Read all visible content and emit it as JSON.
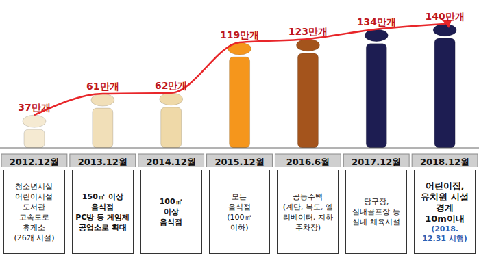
{
  "chart_data": {
    "type": "bar",
    "categories": [
      "2012.12월",
      "2013.12월",
      "2014.12월",
      "2015.12월",
      "2016.6월",
      "2017.12월",
      "2018.12월"
    ],
    "values": [
      37,
      61,
      62,
      119,
      123,
      134,
      140
    ],
    "value_labels": [
      "37만개",
      "61만개",
      "62만개",
      "119만개",
      "123만개",
      "134만개",
      "140만개"
    ],
    "data_labels": true,
    "colors": [
      "#f5ead2",
      "#f1dfb8",
      "#efd9a8",
      "#f5961c",
      "#a4541c",
      "#1d1d52",
      "#1d1d52"
    ],
    "ylim": [
      0,
      150
    ],
    "tick_labels": "x",
    "annotations": [
      {
        "lines": [
          "청소년시설",
          "어린이시설",
          "도서관",
          "고속도로",
          "휴게소",
          "(26개 시설)"
        ]
      },
      {
        "lines": [
          "150㎡ 이상",
          "음식점",
          "PC방 등 게임제",
          "공업소로 확대"
        ]
      },
      {
        "lines": [
          "100㎡",
          "이상",
          "음식점"
        ]
      },
      {
        "lines": [
          "모든",
          "음식점",
          "(100㎡",
          "이하)"
        ]
      },
      {
        "lines": [
          "공동주택",
          "(계단, 복도, 엘",
          "리베이터, 지하",
          "주차장)"
        ]
      },
      {
        "lines": [
          "당구장,",
          "실내골프장 등",
          "실내 체육시설"
        ]
      },
      {
        "lines": [
          "어린이집,",
          "유치원 시설",
          "경계",
          "10m이내"
        ],
        "sub": [
          "(2018.",
          "12.31 시행)"
        ]
      }
    ]
  }
}
